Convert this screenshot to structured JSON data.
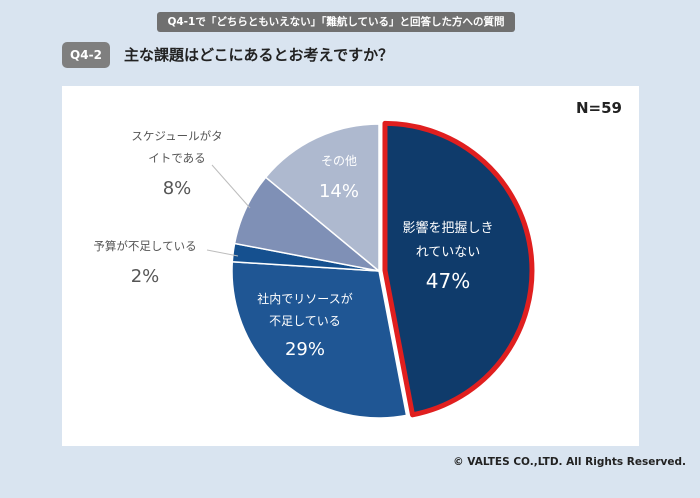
{
  "header": {
    "banner": "Q4-1で「どちらともいえない」「難航している」と回答した方への質問",
    "badge": "Q4-2",
    "question": "主な課題はどこにあるとお考えですか？"
  },
  "chart_data": {
    "type": "pie",
    "title": "主な課題はどこにあるとお考えですか？",
    "n_label": "N=59",
    "slices": [
      {
        "name": "影響を把握しきれていない",
        "lines": [
          "影響を把握しき",
          "れていない"
        ],
        "value": 47,
        "label": "47%",
        "color": "#0f3b6b",
        "highlight": true,
        "label_pos": "inside",
        "text_color": "#ffffff"
      },
      {
        "name": "社内でリソースが不足している",
        "lines": [
          "社内でリソースが",
          "不足している"
        ],
        "value": 29,
        "label": "29%",
        "color": "#1f5694",
        "highlight": false,
        "label_pos": "inside",
        "text_color": "#ffffff"
      },
      {
        "name": "予算が不足している",
        "lines": [
          "予算が不足している"
        ],
        "value": 2,
        "label": "2%",
        "color": "#15508f",
        "highlight": false,
        "label_pos": "outside",
        "text_color": "#555555"
      },
      {
        "name": "スケジュールがタイトである",
        "lines": [
          "スケジュールがタ",
          "イトである"
        ],
        "value": 8,
        "label": "8%",
        "color": "#7f90b6",
        "highlight": false,
        "label_pos": "outside",
        "text_color": "#555555"
      },
      {
        "name": "その他",
        "lines": [
          "その他"
        ],
        "value": 14,
        "label": "14%",
        "color": "#aeb9cf",
        "highlight": false,
        "label_pos": "inside",
        "text_color": "#ffffff"
      }
    ],
    "highlight_color": "#e01f1f"
  },
  "footer": {
    "copyright": "© VALTES CO.,LTD. All Rights Reserved."
  }
}
